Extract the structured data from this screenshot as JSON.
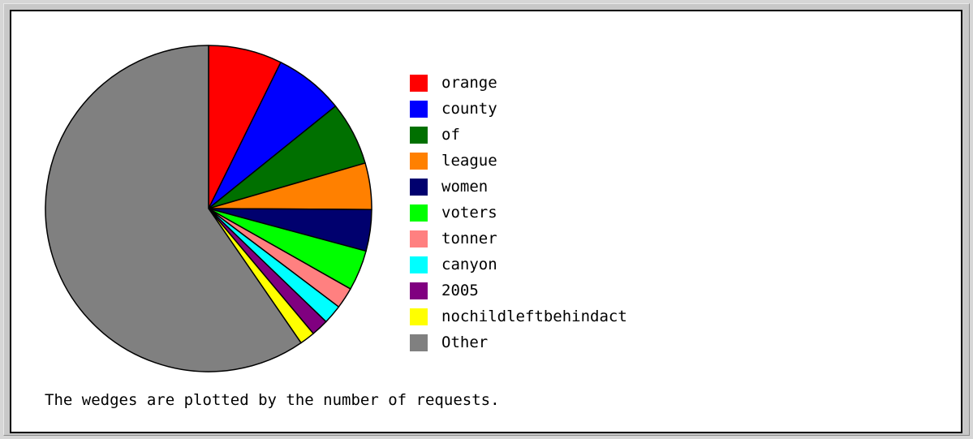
{
  "chart_data": {
    "type": "pie",
    "slices": [
      {
        "label": "orange",
        "value": 7.3,
        "color": "#ff0000"
      },
      {
        "label": "county",
        "value": 6.9,
        "color": "#0000ff"
      },
      {
        "label": "of",
        "value": 6.3,
        "color": "#007000"
      },
      {
        "label": "league",
        "value": 4.6,
        "color": "#ff8000"
      },
      {
        "label": "women",
        "value": 4.1,
        "color": "#00006e"
      },
      {
        "label": "voters",
        "value": 4.0,
        "color": "#00ff00"
      },
      {
        "label": "tonner",
        "value": 2.1,
        "color": "#ff8080"
      },
      {
        "label": "canyon",
        "value": 1.9,
        "color": "#00ffff"
      },
      {
        "label": "2005",
        "value": 1.7,
        "color": "#800080"
      },
      {
        "label": "nochildleftbehindact",
        "value": 1.5,
        "color": "#ffff00"
      },
      {
        "label": "Other",
        "value": 59.6,
        "color": "#808080"
      }
    ],
    "legend_position": "right",
    "caption": "The wedges are plotted by the number of requests."
  }
}
